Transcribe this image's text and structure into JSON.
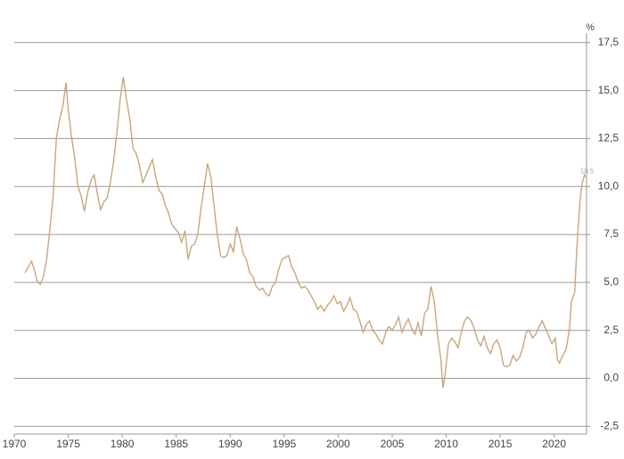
{
  "chart_data": {
    "type": "line",
    "y_axis_label": "%",
    "annotation": {
      "value": 10.5,
      "label": "10,5"
    },
    "xlim": [
      1970,
      2023
    ],
    "xticks": [
      1970,
      1975,
      1980,
      1985,
      1990,
      1995,
      2000,
      2005,
      2010,
      2015,
      2020
    ],
    "ylim": [
      -2.9,
      18
    ],
    "yticks": [
      {
        "value": -2.5,
        "label": "-2,5"
      },
      {
        "value": 0,
        "label": "0,0"
      },
      {
        "value": 2.5,
        "label": "2,5"
      },
      {
        "value": 5,
        "label": "5,0"
      },
      {
        "value": 7.5,
        "label": "7,5"
      },
      {
        "value": 10,
        "label": "10,0"
      },
      {
        "value": 12.5,
        "label": "12,5"
      },
      {
        "value": 15,
        "label": "15,0"
      },
      {
        "value": 17.5,
        "label": "17,5"
      }
    ],
    "grid": true,
    "series": [
      {
        "color": "#c9a67c",
        "x": [
          1971.0,
          1971.3,
          1971.6,
          1971.9,
          1972.1,
          1972.4,
          1972.7,
          1973.0,
          1973.3,
          1973.6,
          1973.9,
          1974.2,
          1974.5,
          1974.8,
          1975.0,
          1975.3,
          1975.6,
          1975.9,
          1976.2,
          1976.5,
          1976.8,
          1977.1,
          1977.4,
          1977.7,
          1978.0,
          1978.3,
          1978.6,
          1978.9,
          1979.2,
          1979.5,
          1979.8,
          1980.1,
          1980.4,
          1980.7,
          1981.0,
          1981.3,
          1981.6,
          1981.9,
          1982.2,
          1982.5,
          1982.8,
          1983.1,
          1983.4,
          1983.7,
          1984.0,
          1984.3,
          1984.6,
          1984.9,
          1985.2,
          1985.5,
          1985.8,
          1986.1,
          1986.4,
          1986.7,
          1987.0,
          1987.3,
          1987.6,
          1987.9,
          1988.2,
          1988.5,
          1988.8,
          1989.1,
          1989.4,
          1989.7,
          1990.0,
          1990.3,
          1990.6,
          1990.9,
          1991.2,
          1991.5,
          1991.8,
          1992.1,
          1992.4,
          1992.7,
          1993.0,
          1993.3,
          1993.6,
          1993.9,
          1994.2,
          1994.5,
          1994.8,
          1995.1,
          1995.4,
          1995.7,
          1996.0,
          1996.3,
          1996.6,
          1996.9,
          1997.2,
          1997.5,
          1997.8,
          1998.1,
          1998.4,
          1998.7,
          1999.0,
          1999.3,
          1999.6,
          1999.9,
          2000.2,
          2000.5,
          2000.8,
          2001.1,
          2001.4,
          2001.7,
          2002.0,
          2002.3,
          2002.6,
          2002.9,
          2003.2,
          2003.5,
          2003.8,
          2004.1,
          2004.4,
          2004.7,
          2005.0,
          2005.3,
          2005.6,
          2005.9,
          2006.2,
          2006.5,
          2006.8,
          2007.1,
          2007.4,
          2007.7,
          2008.0,
          2008.3,
          2008.6,
          2008.9,
          2009.2,
          2009.5,
          2009.7,
          2009.9,
          2010.2,
          2010.5,
          2010.8,
          2011.1,
          2011.4,
          2011.7,
          2012.0,
          2012.3,
          2012.6,
          2012.9,
          2013.2,
          2013.5,
          2013.8,
          2014.1,
          2014.4,
          2014.7,
          2015.0,
          2015.3,
          2015.6,
          2015.9,
          2016.2,
          2016.5,
          2016.8,
          2017.1,
          2017.4,
          2017.7,
          2018.0,
          2018.3,
          2018.6,
          2018.9,
          2019.2,
          2019.5,
          2019.8,
          2020.1,
          2020.3,
          2020.5,
          2020.8,
          2021.1,
          2021.4,
          2021.6,
          2021.9,
          2022.1,
          2022.4,
          2022.6,
          2022.8,
          2022.9
        ],
        "values": [
          5.5,
          5.8,
          6.1,
          5.6,
          5.1,
          4.9,
          5.3,
          6.2,
          7.8,
          9.5,
          12.5,
          13.5,
          14.2,
          15.4,
          14.0,
          12.6,
          11.5,
          10.0,
          9.5,
          8.7,
          9.7,
          10.3,
          10.6,
          9.6,
          8.8,
          9.2,
          9.4,
          10.2,
          11.3,
          12.8,
          14.5,
          15.7,
          14.5,
          13.5,
          12.0,
          11.7,
          11.1,
          10.2,
          10.6,
          11.0,
          11.4,
          10.5,
          9.8,
          9.6,
          9.0,
          8.6,
          8.0,
          7.8,
          7.6,
          7.1,
          7.7,
          6.2,
          6.9,
          7.0,
          7.5,
          8.9,
          10.0,
          11.2,
          10.5,
          9.0,
          7.5,
          6.4,
          6.3,
          6.4,
          7.0,
          6.6,
          7.9,
          7.3,
          6.5,
          6.2,
          5.5,
          5.3,
          4.8,
          4.6,
          4.7,
          4.4,
          4.3,
          4.8,
          5.0,
          5.7,
          6.2,
          6.3,
          6.4,
          5.8,
          5.5,
          5.0,
          4.7,
          4.8,
          4.6,
          4.3,
          4.0,
          3.6,
          3.8,
          3.5,
          3.8,
          4.0,
          4.3,
          3.9,
          4.0,
          3.5,
          3.8,
          4.2,
          3.6,
          3.5,
          3.0,
          2.4,
          2.8,
          3.0,
          2.5,
          2.3,
          2.0,
          1.8,
          2.4,
          2.7,
          2.5,
          2.8,
          3.2,
          2.4,
          2.8,
          3.1,
          2.6,
          2.3,
          2.9,
          2.2,
          3.4,
          3.6,
          4.8,
          4.0,
          2.3,
          1.0,
          -0.5,
          0.2,
          1.8,
          2.1,
          1.9,
          1.6,
          2.4,
          3.0,
          3.2,
          3.0,
          2.6,
          2.0,
          1.7,
          2.2,
          1.6,
          1.3,
          1.8,
          2.0,
          1.6,
          0.7,
          0.6,
          0.7,
          1.2,
          0.9,
          1.1,
          1.6,
          2.4,
          2.5,
          2.1,
          2.3,
          2.7,
          3.0,
          2.6,
          2.2,
          1.8,
          2.1,
          1.0,
          0.8,
          1.2,
          1.5,
          2.5,
          4.0,
          4.5,
          6.8,
          9.3,
          10.2,
          10.6,
          10.5
        ]
      }
    ]
  }
}
